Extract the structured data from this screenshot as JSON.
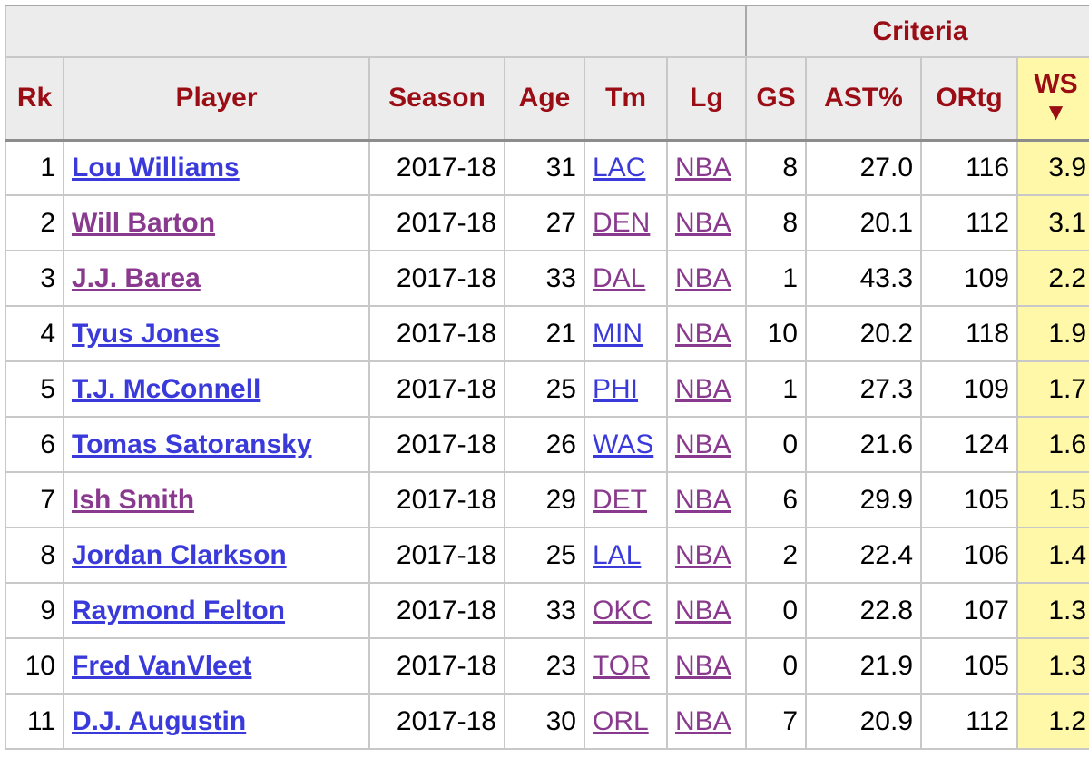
{
  "over_header": {
    "criteria_label": "Criteria"
  },
  "columns": {
    "rk": "Rk",
    "player": "Player",
    "season": "Season",
    "age": "Age",
    "tm": "Tm",
    "lg": "Lg",
    "gs": "GS",
    "ast_pct": "AST%",
    "ortg": "ORtg",
    "ws": "WS",
    "ws_sort_arrow": "▼"
  },
  "rows": [
    {
      "rk": "1",
      "player": "Lou Williams",
      "season": "2017-18",
      "age": "31",
      "tm": "LAC",
      "lg": "NBA",
      "gs": "8",
      "ast_pct": "27.0",
      "ortg": "116",
      "ws": "3.9"
    },
    {
      "rk": "2",
      "player": "Will Barton",
      "season": "2017-18",
      "age": "27",
      "tm": "DEN",
      "lg": "NBA",
      "gs": "8",
      "ast_pct": "20.1",
      "ortg": "112",
      "ws": "3.1"
    },
    {
      "rk": "3",
      "player": "J.J. Barea",
      "season": "2017-18",
      "age": "33",
      "tm": "DAL",
      "lg": "NBA",
      "gs": "1",
      "ast_pct": "43.3",
      "ortg": "109",
      "ws": "2.2"
    },
    {
      "rk": "4",
      "player": "Tyus Jones",
      "season": "2017-18",
      "age": "21",
      "tm": "MIN",
      "lg": "NBA",
      "gs": "10",
      "ast_pct": "20.2",
      "ortg": "118",
      "ws": "1.9"
    },
    {
      "rk": "5",
      "player": "T.J. McConnell",
      "season": "2017-18",
      "age": "25",
      "tm": "PHI",
      "lg": "NBA",
      "gs": "1",
      "ast_pct": "27.3",
      "ortg": "109",
      "ws": "1.7"
    },
    {
      "rk": "6",
      "player": "Tomas Satoransky",
      "season": "2017-18",
      "age": "26",
      "tm": "WAS",
      "lg": "NBA",
      "gs": "0",
      "ast_pct": "21.6",
      "ortg": "124",
      "ws": "1.6"
    },
    {
      "rk": "7",
      "player": "Ish Smith",
      "season": "2017-18",
      "age": "29",
      "tm": "DET",
      "lg": "NBA",
      "gs": "6",
      "ast_pct": "29.9",
      "ortg": "105",
      "ws": "1.5"
    },
    {
      "rk": "8",
      "player": "Jordan Clarkson",
      "season": "2017-18",
      "age": "25",
      "tm": "LAL",
      "lg": "NBA",
      "gs": "2",
      "ast_pct": "22.4",
      "ortg": "106",
      "ws": "1.4"
    },
    {
      "rk": "9",
      "player": "Raymond Felton",
      "season": "2017-18",
      "age": "33",
      "tm": "OKC",
      "lg": "NBA",
      "gs": "0",
      "ast_pct": "22.8",
      "ortg": "107",
      "ws": "1.3"
    },
    {
      "rk": "10",
      "player": "Fred VanVleet",
      "season": "2017-18",
      "age": "23",
      "tm": "TOR",
      "lg": "NBA",
      "gs": "0",
      "ast_pct": "21.9",
      "ortg": "105",
      "ws": "1.3"
    },
    {
      "rk": "11",
      "player": "D.J. Augustin",
      "season": "2017-18",
      "age": "30",
      "tm": "ORL",
      "lg": "NBA",
      "gs": "7",
      "ast_pct": "20.9",
      "ortg": "112",
      "ws": "1.2"
    }
  ],
  "colors": {
    "header_text": "#9b0d15",
    "link_unvisited": "#3a3adb",
    "link_visited": "#8a3a8e",
    "sorted_column_bg": "#fff8a8",
    "header_bg": "#ececec"
  }
}
